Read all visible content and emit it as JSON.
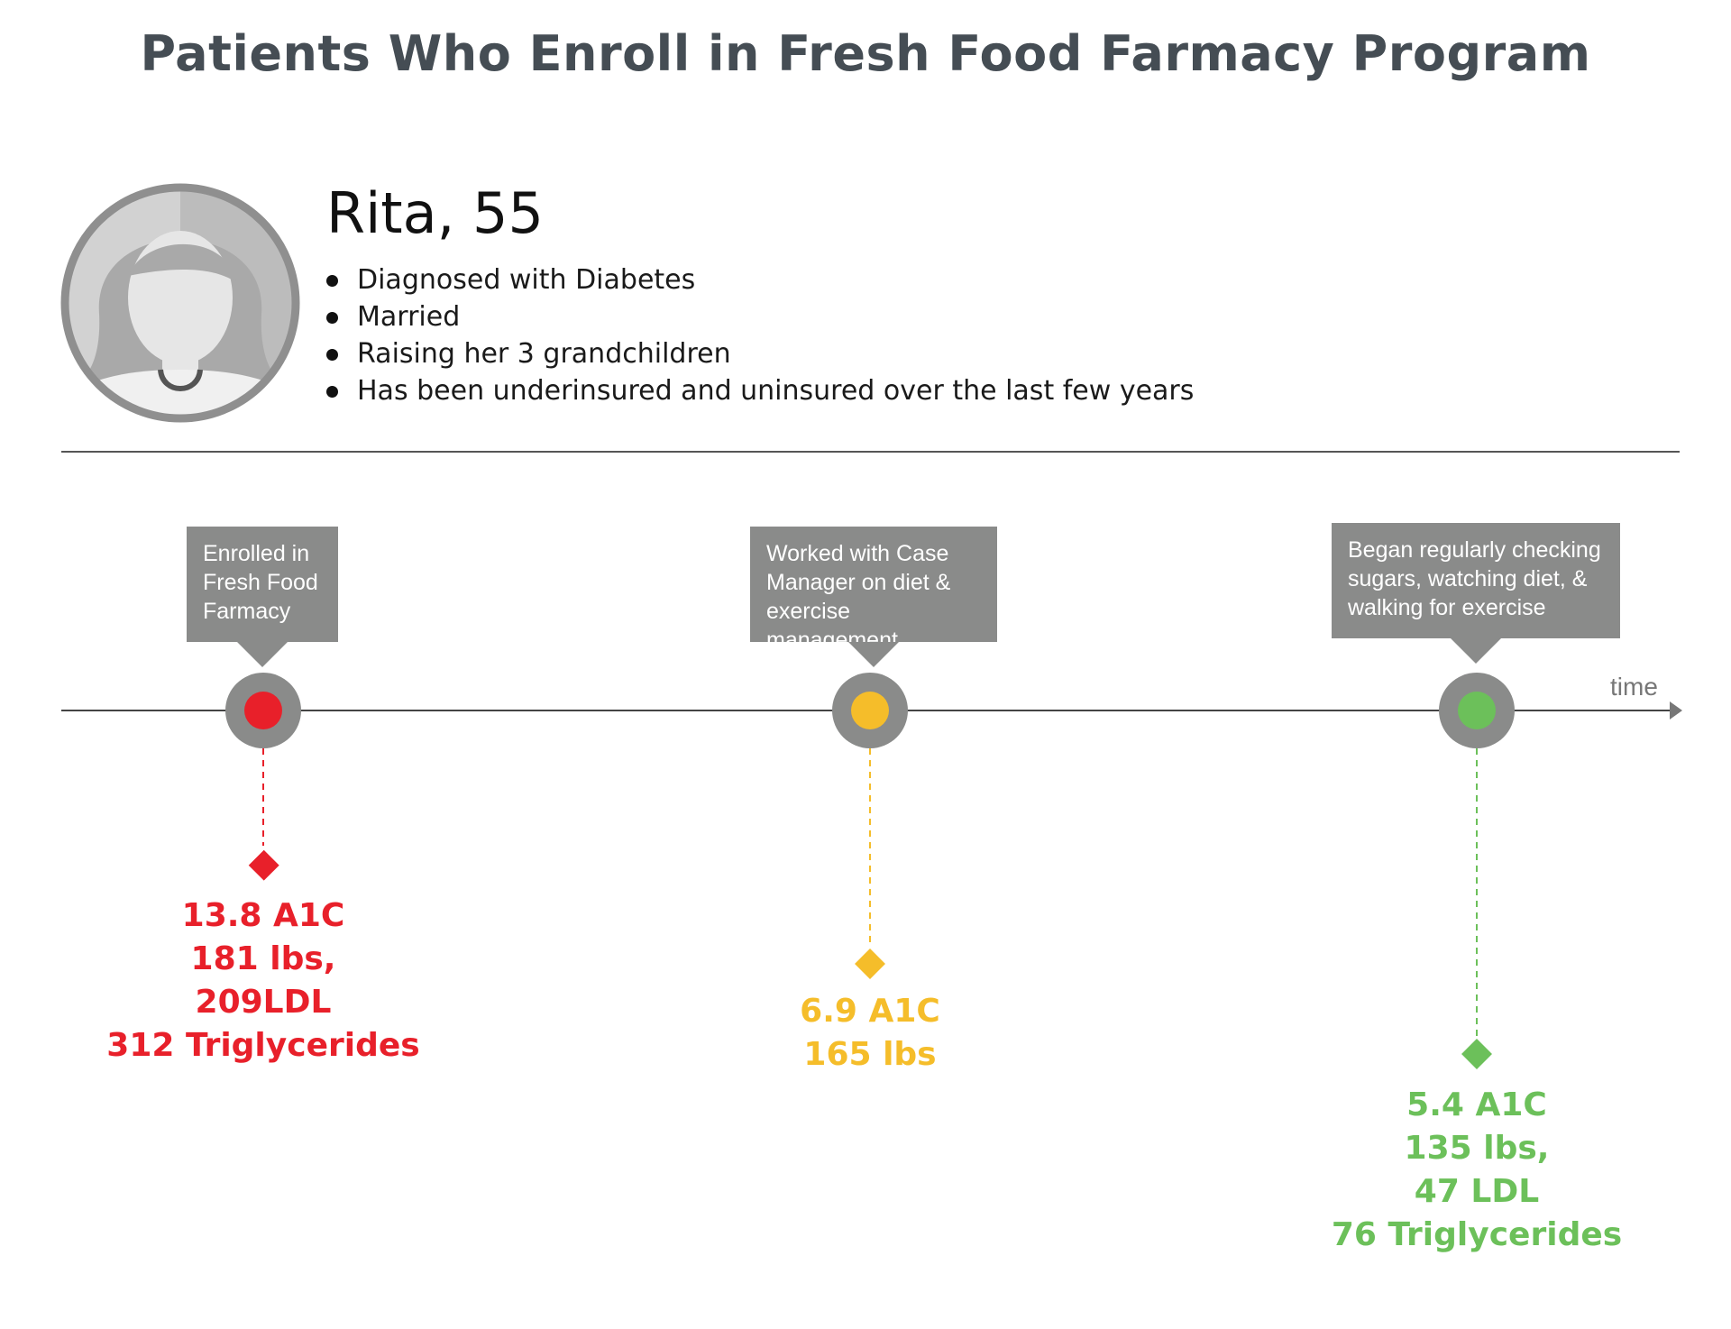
{
  "title": "Patients Who Enroll in Fresh Food Farmacy Program",
  "patient": {
    "name": "Rita, 55",
    "facts": [
      "Diagnosed with Diabetes",
      "Married",
      "Raising her 3 grandchildren",
      "Has been underinsured and uninsured over the last few years"
    ]
  },
  "timeline": {
    "axis_label": "time",
    "milestones": [
      {
        "callout": [
          "Enrolled in",
          "Fresh Food",
          "Farmacy"
        ],
        "color": "#e8202a",
        "metrics": [
          "13.8 A1C",
          "181 lbs,",
          "209LDL",
          "312 Triglycerides"
        ]
      },
      {
        "callout": [
          "Worked with Case",
          "Manager on diet &",
          "exercise management"
        ],
        "color": "#f5bd2a",
        "metrics": [
          "6.9 A1C",
          "165 lbs"
        ]
      },
      {
        "callout": [
          "Began regularly checking",
          "sugars, watching diet, &",
          "walking for exercise"
        ],
        "color": "#6cc05a",
        "metrics": [
          "5.4 A1C",
          "135 lbs,",
          "47 LDL",
          "76 Triglycerides"
        ]
      }
    ]
  },
  "colors": {
    "title": "#454d54",
    "node": "#8a8b8a",
    "callout_bg": "#8a8b8a"
  }
}
